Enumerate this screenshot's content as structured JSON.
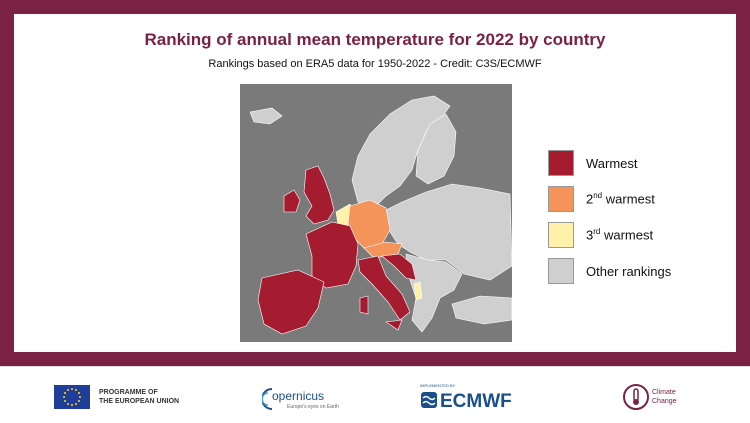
{
  "header": {
    "title": "Ranking of annual mean temperature for 2022 by country",
    "subtitle": "Rankings based on ERA5 data for 1950-2022 - Credit: C3S/ECMWF"
  },
  "colors": {
    "frame": "#7b2143",
    "ocean": "#7a7a7a",
    "warmest": "#a51c30",
    "second_warmest": "#f4935a",
    "third_warmest": "#fff0aa",
    "other": "#cfcfcf",
    "border_line": "#ffffff"
  },
  "map": {
    "regions": [
      {
        "name": "Iberian Peninsula",
        "rank": "warmest"
      },
      {
        "name": "France",
        "rank": "warmest"
      },
      {
        "name": "United Kingdom",
        "rank": "warmest"
      },
      {
        "name": "Ireland",
        "rank": "warmest"
      },
      {
        "name": "Italy",
        "rank": "warmest"
      },
      {
        "name": "Slovenia",
        "rank": "warmest"
      },
      {
        "name": "Croatia",
        "rank": "warmest"
      },
      {
        "name": "Germany",
        "rank": "second_warmest"
      },
      {
        "name": "Austria",
        "rank": "second_warmest"
      },
      {
        "name": "Benelux",
        "rank": "third_warmest"
      },
      {
        "name": "Albania",
        "rank": "third_warmest"
      },
      {
        "name": "Scandinavia",
        "rank": "other"
      },
      {
        "name": "Eastern Europe",
        "rank": "other"
      },
      {
        "name": "Balkans",
        "rank": "other"
      },
      {
        "name": "Iceland",
        "rank": "other"
      }
    ]
  },
  "legend": {
    "items": [
      {
        "key": "warmest",
        "label": "Warmest",
        "sup": "",
        "suffix": ""
      },
      {
        "key": "second_warmest",
        "label": "2",
        "sup": "nd",
        "suffix": " warmest"
      },
      {
        "key": "third_warmest",
        "label": "3",
        "sup": "rd",
        "suffix": " warmest"
      },
      {
        "key": "other",
        "label": "Other rankings",
        "sup": "",
        "suffix": ""
      }
    ]
  },
  "footer": {
    "eu_line1": "PROGRAMME OF",
    "eu_line2": "THE EUROPEAN UNION",
    "copernicus": "opernicus",
    "copernicus_tag": "Europe's eyes on Earth",
    "ecmwf_small": "IMPLEMENTED BY",
    "ecmwf": "ECMWF",
    "cc_line1": "Climate",
    "cc_line2": "Change"
  }
}
